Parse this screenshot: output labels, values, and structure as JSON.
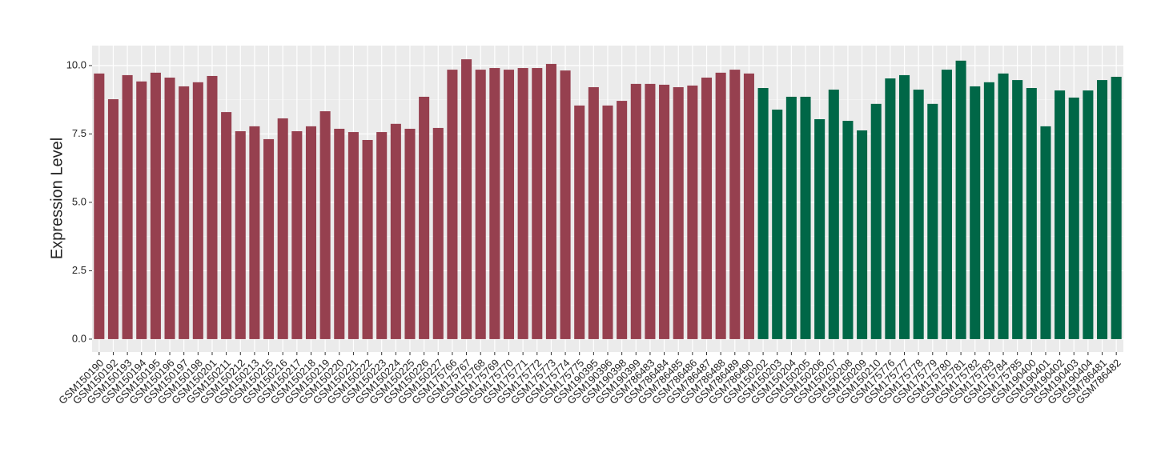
{
  "chart_data": {
    "type": "bar",
    "ylabel": "Expression Level",
    "categories": [
      "GSM150190",
      "GSM150192",
      "GSM150193",
      "GSM150194",
      "GSM150195",
      "GSM150196",
      "GSM150197",
      "GSM150198",
      "GSM150201",
      "GSM150211",
      "GSM150212",
      "GSM150213",
      "GSM150215",
      "GSM150216",
      "GSM150217",
      "GSM150218",
      "GSM150219",
      "GSM150220",
      "GSM150221",
      "GSM150222",
      "GSM150223",
      "GSM150224",
      "GSM150225",
      "GSM150226",
      "GSM150227",
      "GSM175766",
      "GSM175767",
      "GSM175768",
      "GSM175769",
      "GSM175770",
      "GSM175771",
      "GSM175772",
      "GSM175773",
      "GSM175774",
      "GSM175775",
      "GSM190395",
      "GSM190396",
      "GSM190398",
      "GSM190399",
      "GSM786483",
      "GSM786484",
      "GSM786485",
      "GSM786486",
      "GSM786487",
      "GSM786488",
      "GSM786489",
      "GSM786490",
      "GSM150202",
      "GSM150203",
      "GSM150204",
      "GSM150205",
      "GSM150206",
      "GSM150207",
      "GSM150208",
      "GSM150209",
      "GSM150210",
      "GSM175776",
      "GSM175777",
      "GSM175778",
      "GSM175779",
      "GSM175780",
      "GSM175781",
      "GSM175782",
      "GSM175783",
      "GSM175784",
      "GSM175785",
      "GSM190400",
      "GSM190401",
      "GSM190402",
      "GSM190403",
      "GSM190404",
      "GSM786481",
      "GSM786482"
    ],
    "values": [
      9.71,
      8.77,
      9.65,
      9.42,
      9.74,
      9.56,
      9.24,
      9.39,
      9.62,
      8.3,
      7.6,
      7.78,
      7.31,
      8.07,
      7.6,
      7.78,
      8.33,
      7.69,
      7.57,
      7.28,
      7.57,
      7.87,
      7.69,
      8.86,
      7.72,
      9.85,
      10.23,
      9.85,
      9.91,
      9.85,
      9.91,
      9.91,
      10.06,
      9.82,
      8.54,
      9.21,
      8.54,
      8.71,
      9.33,
      9.33,
      9.3,
      9.21,
      9.27,
      9.56,
      9.74,
      9.85,
      9.71,
      9.18,
      8.39,
      8.86,
      8.86,
      8.04,
      9.12,
      7.98,
      7.63,
      8.6,
      9.53,
      9.65,
      9.12,
      8.6,
      9.85,
      10.18,
      9.24,
      9.39,
      9.71,
      9.47,
      9.18,
      7.78,
      9.09,
      8.83,
      9.09,
      9.47,
      9.59
    ],
    "colors": [
      "#96404f",
      "#96404f",
      "#96404f",
      "#96404f",
      "#96404f",
      "#96404f",
      "#96404f",
      "#96404f",
      "#96404f",
      "#96404f",
      "#96404f",
      "#96404f",
      "#96404f",
      "#96404f",
      "#96404f",
      "#96404f",
      "#96404f",
      "#96404f",
      "#96404f",
      "#96404f",
      "#96404f",
      "#96404f",
      "#96404f",
      "#96404f",
      "#96404f",
      "#96404f",
      "#96404f",
      "#96404f",
      "#96404f",
      "#96404f",
      "#96404f",
      "#96404f",
      "#96404f",
      "#96404f",
      "#96404f",
      "#96404f",
      "#96404f",
      "#96404f",
      "#96404f",
      "#96404f",
      "#96404f",
      "#96404f",
      "#96404f",
      "#96404f",
      "#96404f",
      "#96404f",
      "#96404f",
      "#006747",
      "#006747",
      "#006747",
      "#006747",
      "#006747",
      "#006747",
      "#006747",
      "#006747",
      "#006747",
      "#006747",
      "#006747",
      "#006747",
      "#006747",
      "#006747",
      "#006747",
      "#006747",
      "#006747",
      "#006747",
      "#006747",
      "#006747",
      "#006747",
      "#006747",
      "#006747",
      "#006747",
      "#006747",
      "#006747"
    ],
    "ylim": [
      -0.47,
      10.73
    ],
    "yticks": [
      {
        "value": 0,
        "label": "0.0"
      },
      2.5,
      {
        "value": 5,
        "label": "5.0"
      },
      7.5,
      {
        "value": 10,
        "label": "10.0"
      }
    ],
    "grid": true
  }
}
